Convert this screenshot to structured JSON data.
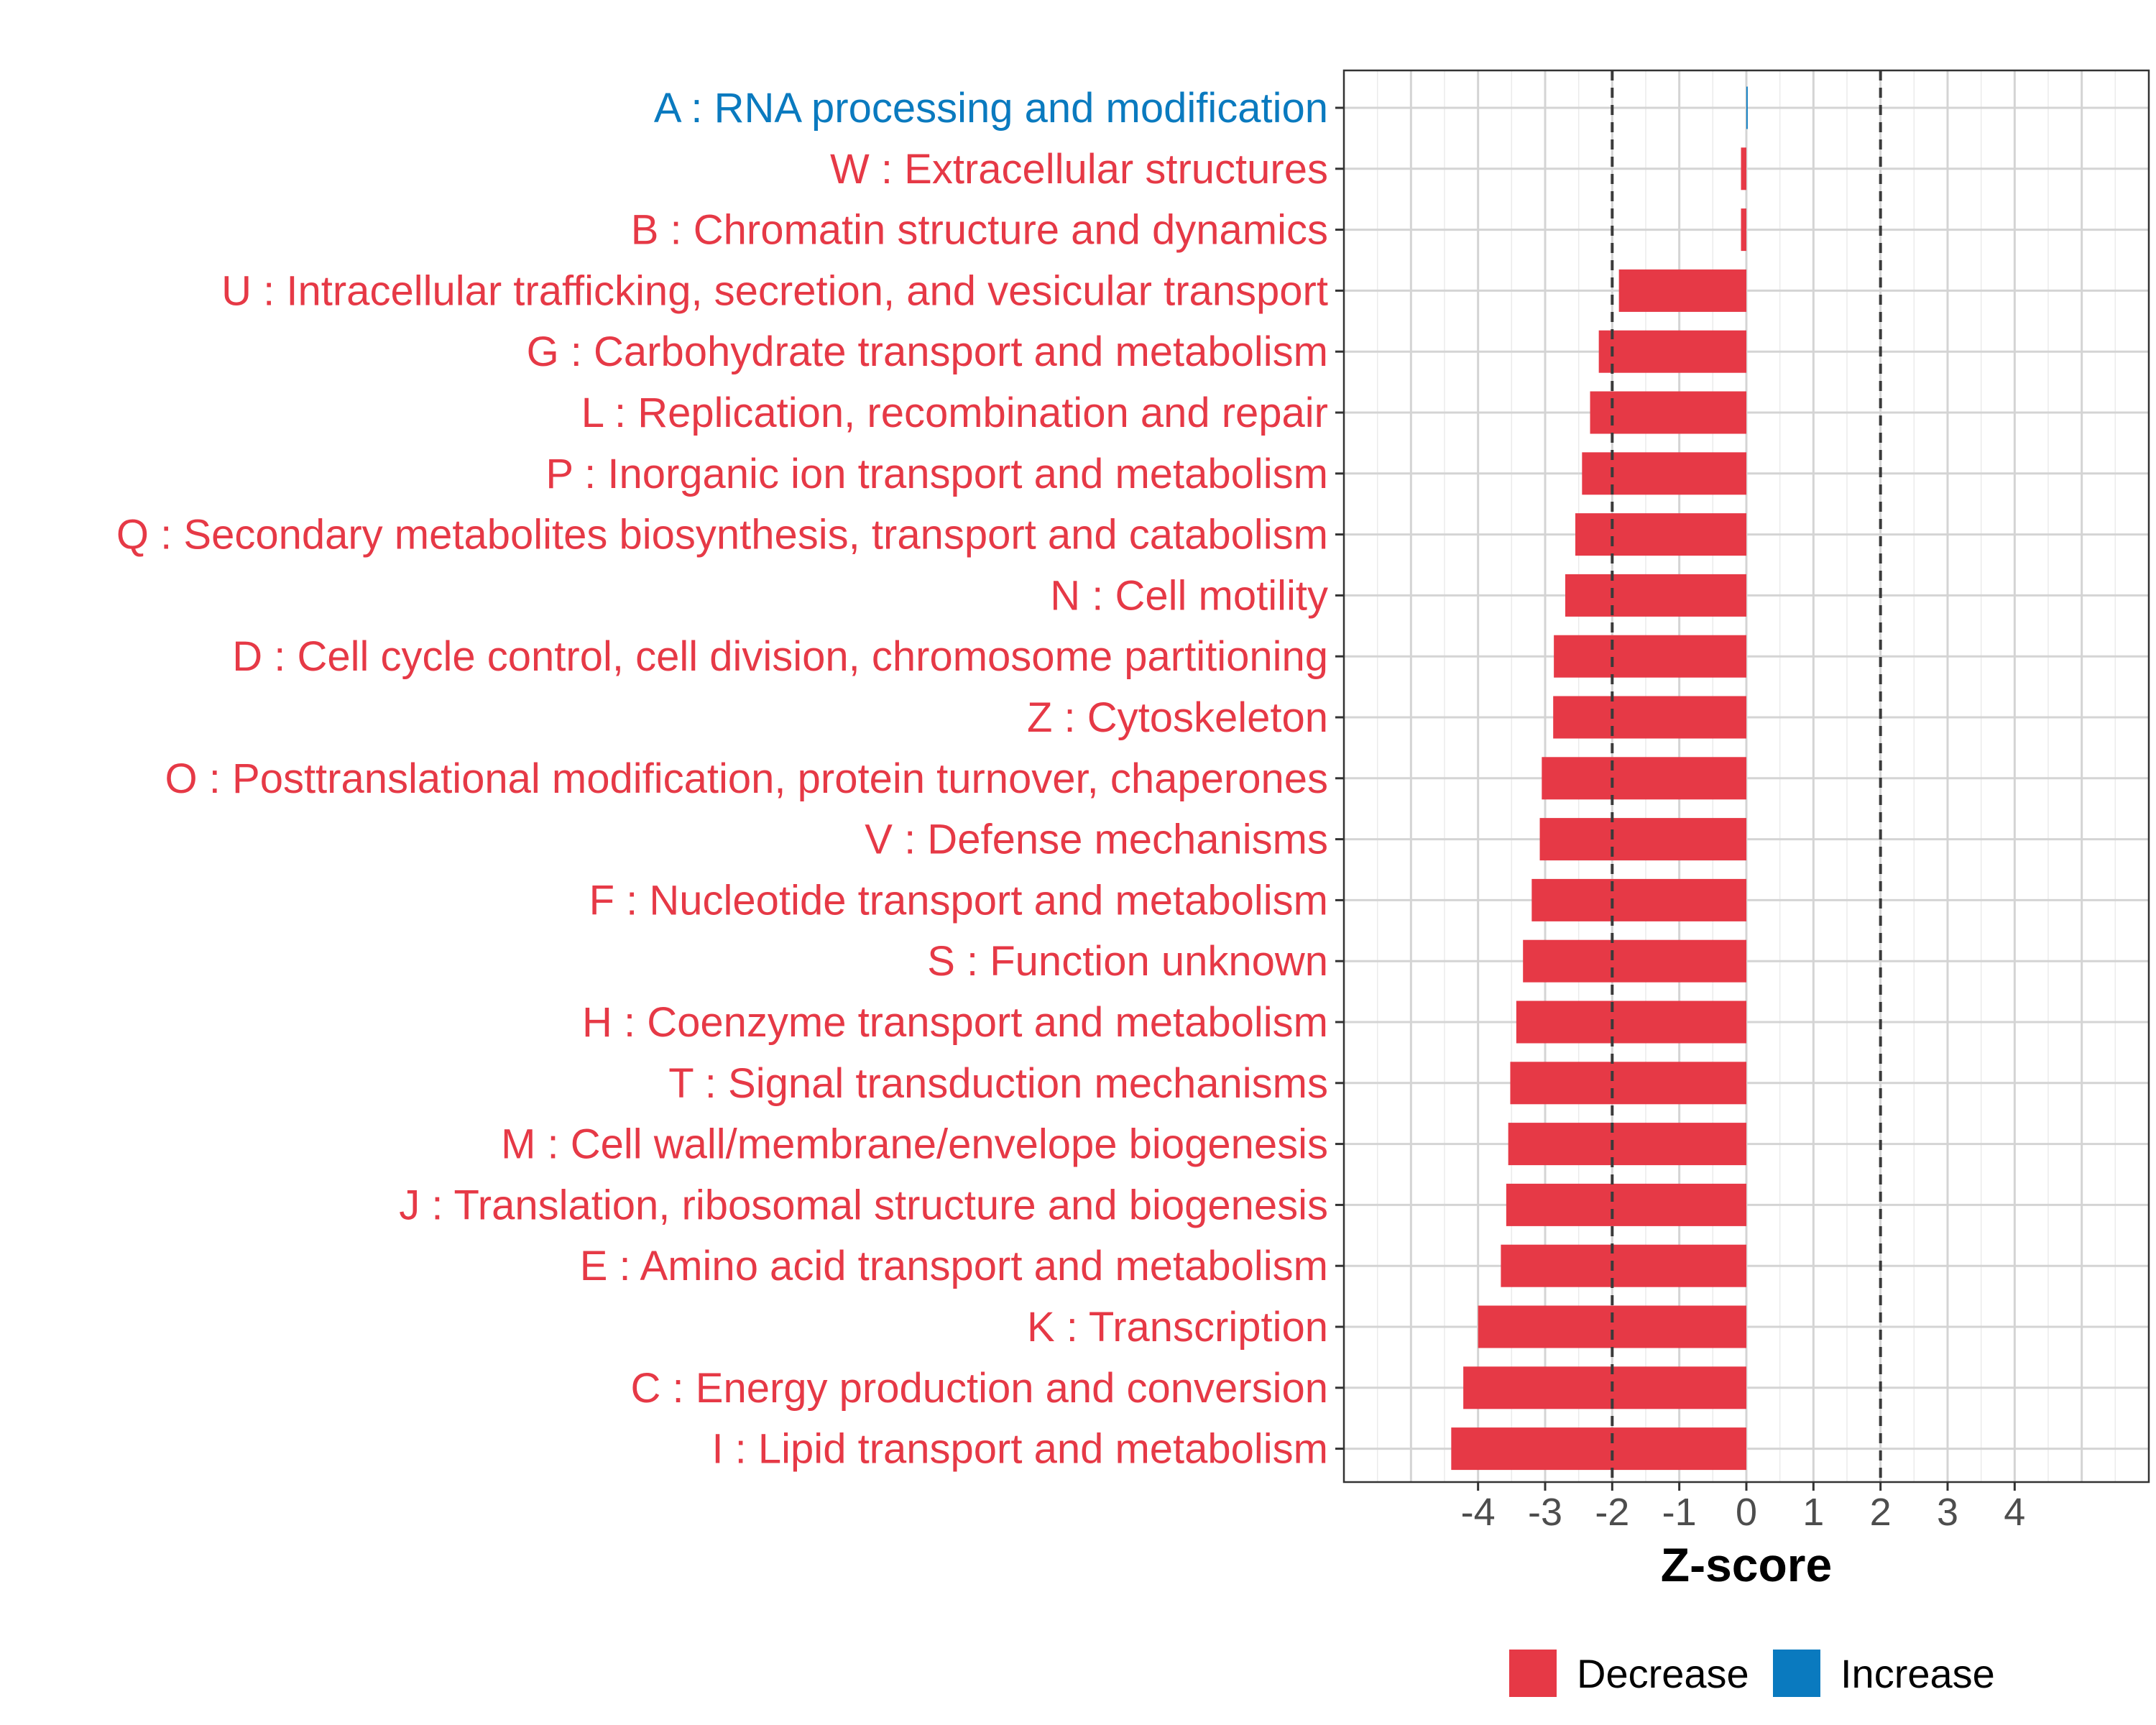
{
  "chart_data": {
    "type": "bar",
    "orientation": "horizontal",
    "title": "",
    "xlabel": "Z-score",
    "ylabel": "",
    "xlim": [
      -6,
      6
    ],
    "xticks": [
      -4,
      -3,
      -2,
      -1,
      0,
      1,
      2,
      3,
      4
    ],
    "reference_lines": [
      -2,
      2
    ],
    "grid": true,
    "legend_position": "bottom",
    "legend": [
      {
        "name": "Decrease",
        "color": "#e63946"
      },
      {
        "name": "Increase",
        "color": "#0a7abf"
      }
    ],
    "categories": [
      "A : RNA processing and modification",
      "W : Extracellular structures",
      "B : Chromatin structure and dynamics",
      "U : Intracellular trafficking, secretion, and vesicular transport",
      "G : Carbohydrate transport and metabolism",
      "L : Replication, recombination and repair",
      "P : Inorganic ion transport and metabolism",
      "Q : Secondary metabolites biosynthesis, transport and catabolism",
      "N : Cell motility",
      "D : Cell cycle control, cell division, chromosome partitioning",
      "Z : Cytoskeleton",
      "O : Posttranslational modification, protein turnover, chaperones",
      "V : Defense mechanisms",
      "F : Nucleotide transport and metabolism",
      "S : Function unknown",
      "H : Coenzyme transport and metabolism",
      "T : Signal transduction mechanisms",
      "M : Cell wall/membrane/envelope biogenesis",
      "J : Translation, ribosomal structure and biogenesis",
      "E : Amino acid transport and metabolism",
      "K : Transcription",
      "C : Energy production and conversion",
      "I : Lipid transport and metabolism"
    ],
    "values": [
      0.02,
      -0.08,
      -0.08,
      -1.9,
      -2.2,
      -2.33,
      -2.45,
      -2.55,
      -2.7,
      -2.87,
      -2.88,
      -3.05,
      -3.08,
      -3.2,
      -3.33,
      -3.43,
      -3.52,
      -3.55,
      -3.58,
      -3.66,
      -4.0,
      -4.22,
      -4.4
    ],
    "groups": [
      "Increase",
      "Decrease",
      "Decrease",
      "Decrease",
      "Decrease",
      "Decrease",
      "Decrease",
      "Decrease",
      "Decrease",
      "Decrease",
      "Decrease",
      "Decrease",
      "Decrease",
      "Decrease",
      "Decrease",
      "Decrease",
      "Decrease",
      "Decrease",
      "Decrease",
      "Decrease",
      "Decrease",
      "Decrease",
      "Decrease"
    ]
  }
}
